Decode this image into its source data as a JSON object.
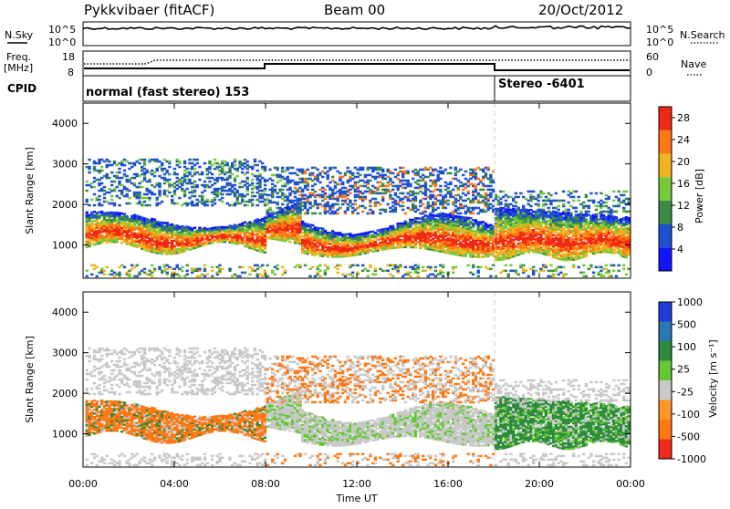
{
  "header": {
    "station": "Pykkvibaer (fitACF)",
    "beam": "Beam 00",
    "date": "20/Oct/2012"
  },
  "panels": {
    "nsky_label": "N.Sky",
    "nsky_ticks": [
      "10^5",
      "10^0"
    ],
    "nsearch_label": "N.Search",
    "nsearch_ticks": [
      "10^5",
      "10^0"
    ],
    "freq_label": "Freq.",
    "freq_unit": "[MHz]",
    "freq_ticks": [
      "18",
      "8"
    ],
    "nave_label": "Nave",
    "nave_ticks": [
      "60",
      "0"
    ],
    "cpid_label": "CPID",
    "cpid_segments": [
      {
        "name": "normal (fast stereo) 153",
        "start_hour": 0
      },
      {
        "name": "Stereo -6401",
        "start_hour": 18
      }
    ]
  },
  "chart_data": [
    {
      "type": "heatmap",
      "name": "power",
      "ylabel": "Slant Range [km]",
      "ylim": [
        180,
        4500
      ],
      "yticks": [
        "1000",
        "2000",
        "3000",
        "4000"
      ],
      "xlim": [
        0,
        24
      ],
      "colorbar_label": "Power [dB]",
      "colorbar_ticks": [
        "4",
        "8",
        "12",
        "16",
        "20",
        "24",
        "28"
      ],
      "colorbar_range": [
        0,
        30
      ],
      "colors": [
        "#1414ff",
        "#1e50d2",
        "#3c8c46",
        "#78c83c",
        "#f0b41e",
        "#ff7814",
        "#f02814"
      ]
    },
    {
      "type": "heatmap",
      "name": "velocity",
      "ylabel": "Slant Range [km]",
      "ylim": [
        180,
        4500
      ],
      "yticks": [
        "1000",
        "2000",
        "3000",
        "4000"
      ],
      "xlim": [
        0,
        24
      ],
      "colorbar_label": "Velocity [m s⁻¹]",
      "colorbar_ticks": [
        "1000",
        "500",
        "100",
        "25",
        "-25",
        "-100",
        "-500",
        "-1000"
      ],
      "colors": [
        "#1e3cdc",
        "#2878b4",
        "#2d8c3c",
        "#64c832",
        "#c8c8c8",
        "#ff9628",
        "#ff7814",
        "#f0281e"
      ]
    }
  ],
  "xaxis": {
    "label": "Time UT",
    "ticks": [
      "00:00",
      "04:00",
      "08:00",
      "12:00",
      "16:00",
      "20:00",
      "00:00"
    ]
  }
}
